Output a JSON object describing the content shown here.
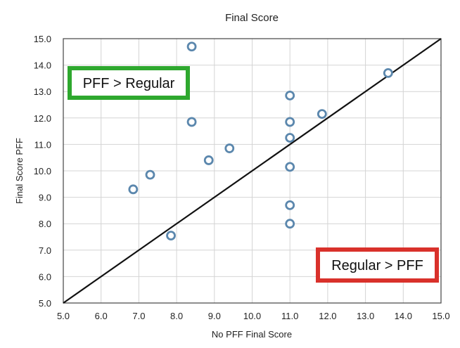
{
  "chart_data": {
    "type": "scatter",
    "title": "Final Score",
    "xlabel": "No PFF Final Score",
    "ylabel": "Final Score PFF",
    "xlim": [
      5.0,
      15.0
    ],
    "ylim": [
      5.0,
      15.0
    ],
    "xticks": [
      "5.0",
      "6.0",
      "7.0",
      "8.0",
      "9.0",
      "10.0",
      "11.0",
      "12.0",
      "13.0",
      "14.0",
      "15.0"
    ],
    "yticks": [
      "5.0",
      "6.0",
      "7.0",
      "8.0",
      "9.0",
      "10.0",
      "11.0",
      "12.0",
      "13.0",
      "14.0",
      "15.0"
    ],
    "grid": true,
    "series": [
      {
        "color": "#5b87ad",
        "points": [
          {
            "x": 6.85,
            "y": 9.3
          },
          {
            "x": 7.3,
            "y": 9.85
          },
          {
            "x": 7.85,
            "y": 7.55
          },
          {
            "x": 8.4,
            "y": 14.7
          },
          {
            "x": 8.4,
            "y": 11.85
          },
          {
            "x": 8.85,
            "y": 10.4
          },
          {
            "x": 9.4,
            "y": 10.85
          },
          {
            "x": 11.0,
            "y": 12.85
          },
          {
            "x": 11.0,
            "y": 11.85
          },
          {
            "x": 11.0,
            "y": 11.25
          },
          {
            "x": 11.0,
            "y": 10.15
          },
          {
            "x": 11.0,
            "y": 8.7
          },
          {
            "x": 11.0,
            "y": 8.0
          },
          {
            "x": 11.85,
            "y": 12.15
          },
          {
            "x": 13.6,
            "y": 13.7
          }
        ]
      }
    ],
    "reference_line": {
      "from": [
        5.0,
        5.0
      ],
      "to": [
        15.0,
        15.0
      ],
      "color": "#111111"
    },
    "annotations": [
      {
        "text": "PFF > Regular",
        "border_color": "#2ea82e",
        "placement": "top-left"
      },
      {
        "text": "Regular > PFF",
        "border_color": "#d9312b",
        "placement": "bottom-right"
      }
    ]
  }
}
